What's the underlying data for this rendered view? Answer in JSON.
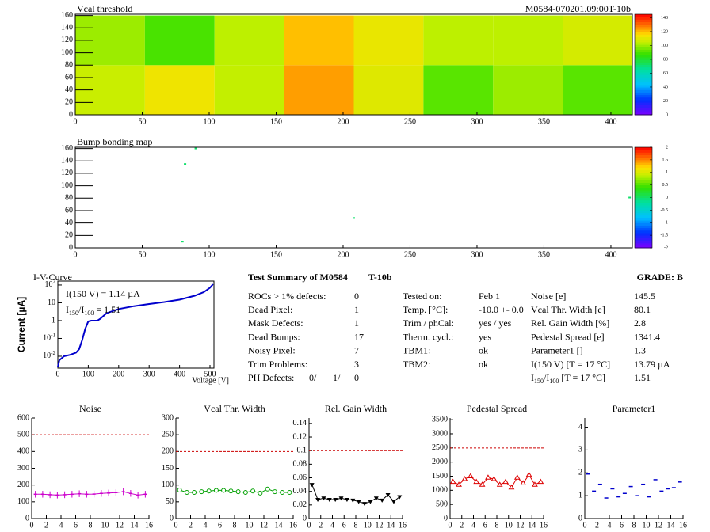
{
  "chart_data": [
    {
      "type": "heatmap",
      "title": "Vcal threshold",
      "label": "M0584-070201.09:00T-10b",
      "xlim": [
        0,
        416
      ],
      "ylim": [
        0,
        162
      ],
      "xticks": [
        0,
        50,
        100,
        150,
        200,
        250,
        300,
        350,
        400
      ],
      "yticks": [
        0,
        20,
        40,
        60,
        80,
        100,
        120,
        140,
        160
      ],
      "zlim": [
        0,
        145
      ],
      "zticks": [
        0,
        20,
        40,
        60,
        80,
        100,
        120,
        140
      ],
      "roc_cols": [
        0,
        52,
        104,
        156,
        208,
        260,
        312,
        364,
        416
      ],
      "roc_rows": [
        0,
        80,
        160
      ],
      "values": [
        [
          106,
          113,
          105,
          124,
          110,
          92,
          100,
          92
        ],
        [
          100,
          90,
          104,
          120,
          112,
          104,
          104,
          108
        ]
      ]
    },
    {
      "type": "scatter",
      "title": "Bump bonding map",
      "xlim": [
        0,
        416
      ],
      "ylim": [
        0,
        162
      ],
      "xticks": [
        0,
        50,
        100,
        150,
        200,
        250,
        300,
        350,
        400
      ],
      "yticks": [
        0,
        20,
        40,
        60,
        80,
        100,
        120,
        140,
        160
      ],
      "zlim": [
        -2,
        2
      ],
      "zticks": [
        -2,
        -1.5,
        -1,
        -0.5,
        0,
        0.5,
        1,
        1.5,
        2
      ],
      "x": [
        90,
        82,
        208,
        80,
        414
      ],
      "y": [
        160,
        135,
        48,
        10,
        81
      ],
      "values": [
        0,
        0,
        0,
        0,
        0
      ]
    },
    {
      "type": "line",
      "title": "I-V-Curve",
      "xlabel": "Voltage [V]",
      "ylabel": "Current [µA]",
      "text1": "I(150 V) = 1.14 µA",
      "text2": [
        "I",
        "150",
        "/I",
        "100",
        " = 1.51"
      ],
      "log_y": true,
      "color": "#0000cc",
      "xlim": [
        0,
        513
      ],
      "ylim": [
        0.00215,
        166
      ],
      "xticks": [
        0,
        100,
        200,
        300,
        400,
        500
      ],
      "yticks": [
        {
          "value": 0.01,
          "label": "10",
          "sup": "-2"
        },
        {
          "value": 0.1,
          "label": "10",
          "sup": "-1"
        },
        1,
        10,
        {
          "value": 100,
          "label": "10",
          "sup": "2"
        }
      ],
      "x": [
        0,
        5,
        20,
        40,
        60,
        70,
        80,
        90,
        100,
        110,
        130,
        140,
        160,
        200,
        250,
        300,
        350,
        400,
        450,
        480,
        500,
        510
      ],
      "values": [
        0.0025,
        0.006,
        0.01,
        0.012,
        0.016,
        0.025,
        0.08,
        0.35,
        0.9,
        1,
        1,
        1.3,
        2.6,
        4.5,
        6.5,
        8.5,
        11,
        15,
        25,
        40,
        70,
        110
      ]
    },
    {
      "type": "profile",
      "title": "Noise",
      "color": "#cc00cc",
      "marker": "none",
      "limit": 500,
      "xlim": [
        0,
        16
      ],
      "ylim": [
        0,
        600
      ],
      "xticks": [
        0,
        2,
        4,
        6,
        8,
        10,
        12,
        14,
        16
      ],
      "yticks": [
        0,
        100,
        200,
        300,
        400,
        500,
        600
      ],
      "x": [
        0.5,
        1.5,
        2.5,
        3.5,
        4.5,
        5.5,
        6.5,
        7.5,
        8.5,
        9.5,
        10.5,
        11.5,
        12.5,
        13.5,
        14.5,
        15.5
      ],
      "values": [
        145,
        145,
        142,
        140,
        142,
        145,
        148,
        145,
        146,
        150,
        152,
        155,
        160,
        150,
        140,
        145
      ],
      "errors": [
        20,
        20,
        20,
        20,
        20,
        20,
        20,
        20,
        20,
        20,
        20,
        20,
        20,
        20,
        20,
        20
      ]
    },
    {
      "type": "profile",
      "title": "Vcal Thr. Width",
      "color": "#00a000",
      "marker": "circle",
      "limit": 200,
      "xlim": [
        0,
        16
      ],
      "ylim": [
        0,
        300
      ],
      "xticks": [
        0,
        2,
        4,
        6,
        8,
        10,
        12,
        14,
        16
      ],
      "yticks": [
        0,
        50,
        100,
        150,
        200,
        250,
        300
      ],
      "x": [
        0.5,
        1.5,
        2.5,
        3.5,
        4.5,
        5.5,
        6.5,
        7.5,
        8.5,
        9.5,
        10.5,
        11.5,
        12.5,
        13.5,
        14.5,
        15.5
      ],
      "values": [
        85,
        78,
        78,
        80,
        82,
        84,
        84,
        82,
        80,
        78,
        82,
        76,
        88,
        80,
        78,
        78
      ]
    },
    {
      "type": "profile",
      "title": "Rel. Gain Width",
      "color": "#000000",
      "marker": "triangle-down",
      "limit": 0.1,
      "xlim": [
        0,
        16
      ],
      "ylim": [
        0,
        0.148
      ],
      "xticks": [
        0,
        2,
        4,
        6,
        8,
        10,
        12,
        14,
        16
      ],
      "yticks": [
        0,
        0.02,
        0.04,
        0.06,
        0.08,
        0.1,
        0.12,
        0.14
      ],
      "x": [
        0.5,
        1.5,
        2.5,
        3.5,
        4.5,
        5.5,
        6.5,
        7.5,
        8.5,
        9.5,
        10.5,
        11.5,
        12.5,
        13.5,
        14.5,
        15.5
      ],
      "values": [
        0.05,
        0.028,
        0.03,
        0.028,
        0.028,
        0.03,
        0.028,
        0.027,
        0.025,
        0.022,
        0.025,
        0.03,
        0.027,
        0.035,
        0.025,
        0.032
      ]
    },
    {
      "type": "profile",
      "title": "Pedestal Spread",
      "color": "#dd0000",
      "marker": "triangle-up",
      "limit": 2500,
      "xlim": [
        0,
        16
      ],
      "ylim": [
        0,
        3560
      ],
      "xticks": [
        0,
        2,
        4,
        6,
        8,
        10,
        12,
        14,
        16
      ],
      "yticks": [
        0,
        500,
        1000,
        1500,
        2000,
        2500,
        3000,
        3500
      ],
      "x": [
        0.5,
        1.5,
        2.5,
        3.5,
        4.5,
        5.5,
        6.5,
        7.5,
        8.5,
        9.5,
        10.5,
        11.5,
        12.5,
        13.5,
        14.5,
        15.5
      ],
      "values": [
        1300,
        1200,
        1400,
        1500,
        1300,
        1200,
        1450,
        1400,
        1200,
        1300,
        1100,
        1450,
        1250,
        1550,
        1200,
        1300
      ]
    },
    {
      "type": "profile",
      "title": "Parameter1",
      "color": "#0000cc",
      "marker": "dash",
      "xlim": [
        0,
        16
      ],
      "ylim": [
        0,
        4.4
      ],
      "xticks": [
        0,
        2,
        4,
        6,
        8,
        10,
        12,
        14,
        16
      ],
      "yticks": [
        0,
        1,
        2,
        3,
        4
      ],
      "x": [
        0.5,
        1.5,
        2.5,
        3.5,
        4.5,
        5.5,
        6.5,
        7.5,
        8.5,
        9.5,
        10.5,
        11.5,
        12.5,
        13.5,
        14.5,
        15.5
      ],
      "values": [
        1.95,
        1.2,
        1.5,
        0.9,
        1.3,
        0.95,
        1.1,
        1.4,
        1.0,
        1.5,
        0.95,
        1.7,
        1.2,
        1.3,
        1.35,
        1.6
      ]
    }
  ],
  "summary": {
    "title": "Test Summary of M0584",
    "tag": "T-10b",
    "grade": "GRADE:  B",
    "left": [
      [
        "ROCs > 1% defects:",
        0
      ],
      [
        "Dead Pixel:",
        1
      ],
      [
        "Mask Defects:",
        1
      ],
      [
        "Dead Bumps:",
        17
      ],
      [
        "Noisy Pixel:",
        7
      ],
      [
        "Trim Problems:",
        3
      ]
    ],
    "ph_label": "PH Defects:",
    "ph": [
      "0/",
      "1/",
      "0"
    ],
    "middle": [
      [
        "Tested on:",
        "Feb 1"
      ],
      [
        "Temp. [°C]:",
        "-10.0 +- 0.0"
      ],
      [
        "Trim / phCal:",
        "yes / yes"
      ],
      [
        "Therm. cycl.:",
        "yes"
      ],
      [
        "TBM1:",
        "ok"
      ],
      [
        "TBM2:",
        "ok"
      ]
    ],
    "right": [
      [
        "Noise [e]",
        145.5
      ],
      [
        "Vcal Thr. Width [e]",
        80.1
      ],
      [
        "Rel. Gain Width [%]",
        2.8
      ],
      [
        "Pedestal Spread [e]",
        1341.4
      ],
      [
        "Parameter1 []",
        1.3
      ],
      [
        "I(150 V) [T = 17 °C]",
        "13.79 µA"
      ],
      [
        [
          "I",
          "150",
          "/I",
          "100",
          "  [T = 17 °C]"
        ],
        1.51
      ]
    ]
  }
}
